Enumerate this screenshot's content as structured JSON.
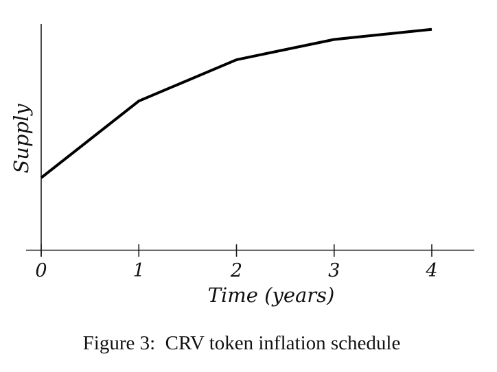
{
  "figure": {
    "caption": "Figure 3:  CRV token inflation schedule"
  },
  "chart_data": {
    "type": "line",
    "title": "",
    "xlabel": "Time (years)",
    "ylabel": "Supply",
    "x": [
      0,
      1,
      2,
      3,
      4
    ],
    "x_tick_labels": [
      "0",
      "1",
      "2",
      "3",
      "4"
    ],
    "series": [
      {
        "name": "Supply",
        "values": [
          1.0,
          2.06,
          2.63,
          2.91,
          3.05
        ],
        "color": "#000000",
        "stroke_width": 4
      }
    ],
    "xlim": [
      -0.15,
      4.43
    ],
    "ylim": [
      0,
      3.12
    ],
    "y_tick_labels": [],
    "grid": false,
    "legend": "none",
    "axis_color": "#1a1a1a",
    "background": "#ffffff"
  }
}
